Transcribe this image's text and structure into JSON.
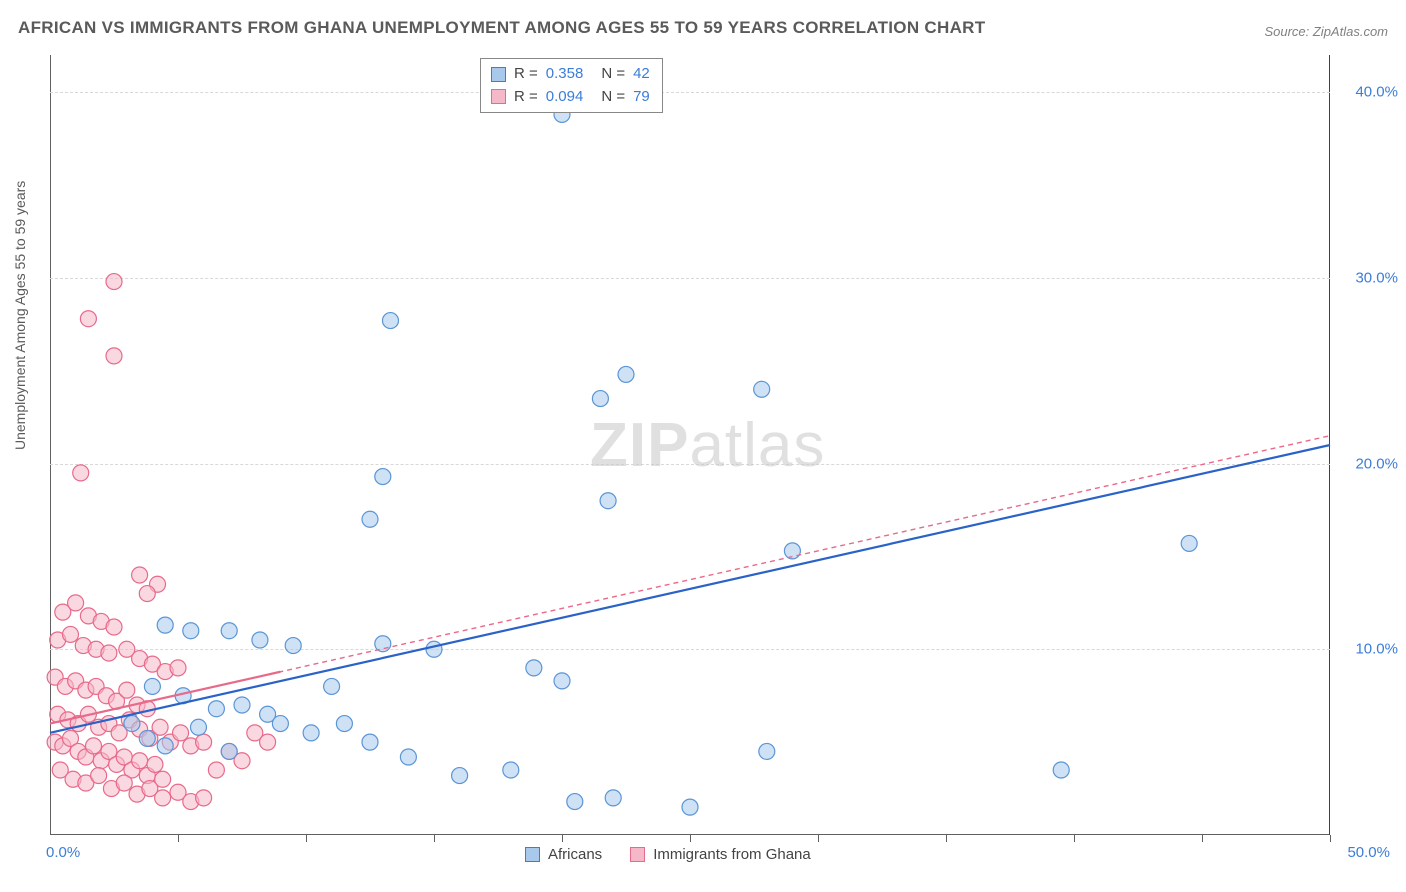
{
  "title": "AFRICAN VS IMMIGRANTS FROM GHANA UNEMPLOYMENT AMONG AGES 55 TO 59 YEARS CORRELATION CHART",
  "source": "Source: ZipAtlas.com",
  "ylabel": "Unemployment Among Ages 55 to 59 years",
  "watermark_zip": "ZIP",
  "watermark_atlas": "atlas",
  "chart": {
    "type": "scatter",
    "xlim": [
      0,
      50
    ],
    "ylim": [
      0,
      42
    ],
    "grid_y": [
      10,
      20,
      30,
      40
    ],
    "y_tick_labels": [
      "10.0%",
      "20.0%",
      "30.0%",
      "40.0%"
    ],
    "x_tick_positions": [
      0,
      5,
      10,
      15,
      20,
      25,
      30,
      35,
      40,
      45,
      50
    ],
    "x_zero_label": "0.0%",
    "x_max_label": "50.0%",
    "grid_color": "#d8d8d8",
    "axis_color": "#606060",
    "background_color": "#ffffff",
    "marker_radius": 8,
    "marker_opacity": 0.55,
    "line_width": 2.2,
    "series": {
      "africans": {
        "label": "Africans",
        "fill": "#a8c8ec",
        "stroke": "#5a95d6",
        "line_color": "#2a62c8",
        "r_label": "R =",
        "r_value": "0.358",
        "n_label": "N =",
        "n_value": "42",
        "regression": {
          "x1": 0,
          "y1": 5.5,
          "x2": 50,
          "y2": 21.0
        },
        "points": [
          [
            20.0,
            38.8
          ],
          [
            13.3,
            27.7
          ],
          [
            21.5,
            23.5
          ],
          [
            22.5,
            24.8
          ],
          [
            27.8,
            24.0
          ],
          [
            13.0,
            19.3
          ],
          [
            12.5,
            17.0
          ],
          [
            21.8,
            18.0
          ],
          [
            29.0,
            15.3
          ],
          [
            44.5,
            15.7
          ],
          [
            4.5,
            11.3
          ],
          [
            5.5,
            11.0
          ],
          [
            7.0,
            11.0
          ],
          [
            8.2,
            10.5
          ],
          [
            9.5,
            10.2
          ],
          [
            11.0,
            8.0
          ],
          [
            13.0,
            10.3
          ],
          [
            15.0,
            10.0
          ],
          [
            18.9,
            9.0
          ],
          [
            20.0,
            8.3
          ],
          [
            4.0,
            8.0
          ],
          [
            5.2,
            7.5
          ],
          [
            6.5,
            6.8
          ],
          [
            7.5,
            7.0
          ],
          [
            8.5,
            6.5
          ],
          [
            9.0,
            6.0
          ],
          [
            10.2,
            5.5
          ],
          [
            11.5,
            6.0
          ],
          [
            12.5,
            5.0
          ],
          [
            14.0,
            4.2
          ],
          [
            16.0,
            3.2
          ],
          [
            18.0,
            3.5
          ],
          [
            20.5,
            1.8
          ],
          [
            22.0,
            2.0
          ],
          [
            25.0,
            1.5
          ],
          [
            3.2,
            6.0
          ],
          [
            3.8,
            5.2
          ],
          [
            4.5,
            4.8
          ],
          [
            5.8,
            5.8
          ],
          [
            7.0,
            4.5
          ],
          [
            39.5,
            3.5
          ],
          [
            28.0,
            4.5
          ]
        ]
      },
      "ghana": {
        "label": "Immigrants from Ghana",
        "fill": "#f5b8c8",
        "stroke": "#e86a8a",
        "line_color": "#e86a8a",
        "line_dash": "5,4",
        "r_label": "R =",
        "r_value": "0.094",
        "n_label": "N =",
        "n_value": "79",
        "regression": {
          "x1": 0,
          "y1": 6.0,
          "x2": 50,
          "y2": 21.5
        },
        "regression_visible_xmax": 9,
        "points": [
          [
            2.5,
            29.8
          ],
          [
            1.5,
            27.8
          ],
          [
            2.5,
            25.8
          ],
          [
            1.2,
            19.5
          ],
          [
            3.5,
            14.0
          ],
          [
            4.2,
            13.5
          ],
          [
            3.8,
            13.0
          ],
          [
            0.5,
            12.0
          ],
          [
            1.0,
            12.5
          ],
          [
            1.5,
            11.8
          ],
          [
            2.0,
            11.5
          ],
          [
            2.5,
            11.2
          ],
          [
            0.3,
            10.5
          ],
          [
            0.8,
            10.8
          ],
          [
            1.3,
            10.2
          ],
          [
            1.8,
            10.0
          ],
          [
            2.3,
            9.8
          ],
          [
            3.0,
            10.0
          ],
          [
            3.5,
            9.5
          ],
          [
            4.0,
            9.2
          ],
          [
            4.5,
            8.8
          ],
          [
            5.0,
            9.0
          ],
          [
            0.2,
            8.5
          ],
          [
            0.6,
            8.0
          ],
          [
            1.0,
            8.3
          ],
          [
            1.4,
            7.8
          ],
          [
            1.8,
            8.0
          ],
          [
            2.2,
            7.5
          ],
          [
            2.6,
            7.2
          ],
          [
            3.0,
            7.8
          ],
          [
            3.4,
            7.0
          ],
          [
            3.8,
            6.8
          ],
          [
            0.3,
            6.5
          ],
          [
            0.7,
            6.2
          ],
          [
            1.1,
            6.0
          ],
          [
            1.5,
            6.5
          ],
          [
            1.9,
            5.8
          ],
          [
            2.3,
            6.0
          ],
          [
            2.7,
            5.5
          ],
          [
            3.1,
            6.2
          ],
          [
            3.5,
            5.7
          ],
          [
            3.9,
            5.2
          ],
          [
            4.3,
            5.8
          ],
          [
            4.7,
            5.0
          ],
          [
            5.1,
            5.5
          ],
          [
            5.5,
            4.8
          ],
          [
            6.0,
            5.0
          ],
          [
            0.2,
            5.0
          ],
          [
            0.5,
            4.8
          ],
          [
            0.8,
            5.2
          ],
          [
            1.1,
            4.5
          ],
          [
            1.4,
            4.2
          ],
          [
            1.7,
            4.8
          ],
          [
            2.0,
            4.0
          ],
          [
            2.3,
            4.5
          ],
          [
            2.6,
            3.8
          ],
          [
            2.9,
            4.2
          ],
          [
            3.2,
            3.5
          ],
          [
            3.5,
            4.0
          ],
          [
            3.8,
            3.2
          ],
          [
            4.1,
            3.8
          ],
          [
            4.4,
            3.0
          ],
          [
            0.4,
            3.5
          ],
          [
            0.9,
            3.0
          ],
          [
            1.4,
            2.8
          ],
          [
            1.9,
            3.2
          ],
          [
            2.4,
            2.5
          ],
          [
            2.9,
            2.8
          ],
          [
            3.4,
            2.2
          ],
          [
            3.9,
            2.5
          ],
          [
            4.4,
            2.0
          ],
          [
            5.0,
            2.3
          ],
          [
            5.5,
            1.8
          ],
          [
            6.0,
            2.0
          ],
          [
            6.5,
            3.5
          ],
          [
            7.0,
            4.5
          ],
          [
            7.5,
            4.0
          ],
          [
            8.0,
            5.5
          ],
          [
            8.5,
            5.0
          ]
        ]
      }
    }
  }
}
